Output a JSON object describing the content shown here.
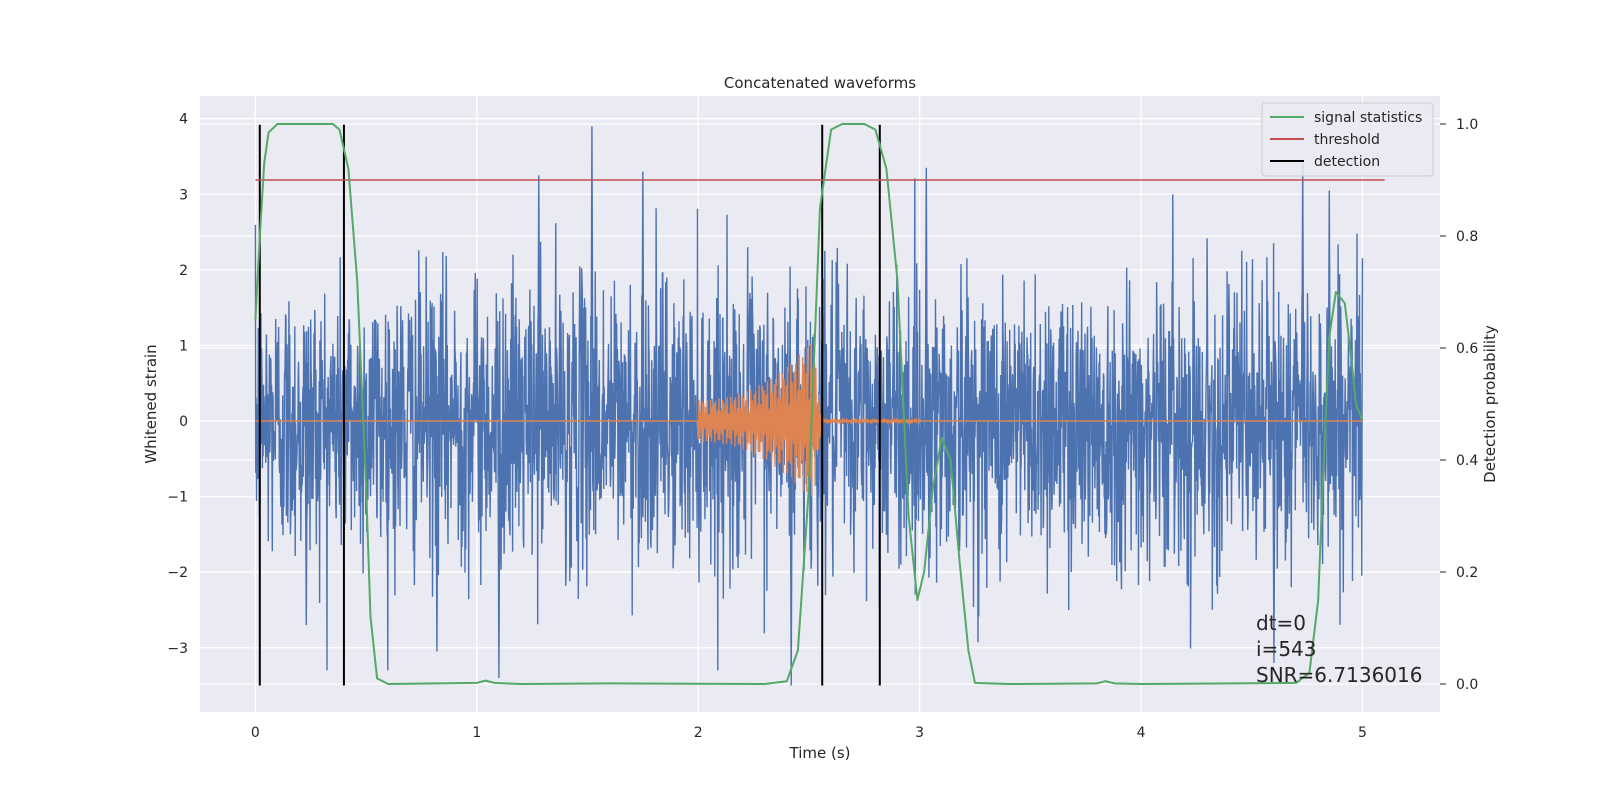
{
  "chart_data": {
    "type": "line",
    "title": "Concatenated waveforms",
    "xlabel": "Time (s)",
    "ylabel": "Whitened strain",
    "y2label": "Detection probability",
    "xlim": [
      -0.25,
      5.35
    ],
    "ylim": [
      -3.85,
      4.3
    ],
    "y2lim": [
      -0.05,
      1.05
    ],
    "xticks": [
      0,
      1,
      2,
      3,
      4,
      5
    ],
    "yticks": [
      -3,
      -2,
      -1,
      0,
      1,
      2,
      3,
      4
    ],
    "y2ticks": [
      0.0,
      0.2,
      0.4,
      0.6,
      0.8,
      1.0
    ],
    "grid": true,
    "legend_position": "top-right",
    "series": [
      {
        "name": "strain",
        "axis": "left",
        "color": "#4c72b0",
        "kind": "noise",
        "x_range": [
          0,
          5
        ],
        "typical_amplitude": 1.2,
        "peaks": [
          {
            "x": 1.52,
            "y": 3.9
          },
          {
            "x": 1.1,
            "y": -3.4
          },
          {
            "x": 2.42,
            "y": -3.5
          },
          {
            "x": 0.23,
            "y": -2.7
          },
          {
            "x": 0.82,
            "y": -3.05
          },
          {
            "x": 1.28,
            "y": 3.25
          },
          {
            "x": 1.75,
            "y": 3.3
          },
          {
            "x": 4.73,
            "y": 3.4
          },
          {
            "x": 4.85,
            "y": 3.05
          },
          {
            "x": 3.03,
            "y": 3.35
          },
          {
            "x": 4.6,
            "y": -3.2
          }
        ]
      },
      {
        "name": "injected signal",
        "axis": "left",
        "color": "#dd8452",
        "kind": "chirp",
        "x_start": 2.0,
        "x_peak": 2.52,
        "x_end": 3.0,
        "start_amplitude": 0.28,
        "peak_amplitude": 1.08
      },
      {
        "name": "signal statistics",
        "axis": "right",
        "color": "#55a868",
        "points": [
          [
            0.0,
            0.65
          ],
          [
            0.02,
            0.8
          ],
          [
            0.04,
            0.93
          ],
          [
            0.06,
            0.985
          ],
          [
            0.1,
            1.0
          ],
          [
            0.35,
            1.0
          ],
          [
            0.38,
            0.99
          ],
          [
            0.42,
            0.92
          ],
          [
            0.46,
            0.72
          ],
          [
            0.5,
            0.35
          ],
          [
            0.52,
            0.12
          ],
          [
            0.55,
            0.01
          ],
          [
            0.6,
            0.0
          ],
          [
            1.0,
            0.002
          ],
          [
            1.04,
            0.006
          ],
          [
            1.08,
            0.002
          ],
          [
            1.2,
            0.0
          ],
          [
            1.6,
            0.001
          ],
          [
            2.3,
            0.0
          ],
          [
            2.4,
            0.005
          ],
          [
            2.45,
            0.06
          ],
          [
            2.5,
            0.35
          ],
          [
            2.55,
            0.85
          ],
          [
            2.6,
            0.99
          ],
          [
            2.65,
            1.0
          ],
          [
            2.75,
            1.0
          ],
          [
            2.8,
            0.99
          ],
          [
            2.85,
            0.92
          ],
          [
            2.9,
            0.72
          ],
          [
            2.95,
            0.3
          ],
          [
            2.99,
            0.15
          ],
          [
            3.02,
            0.2
          ],
          [
            3.06,
            0.35
          ],
          [
            3.1,
            0.44
          ],
          [
            3.14,
            0.4
          ],
          [
            3.18,
            0.22
          ],
          [
            3.22,
            0.06
          ],
          [
            3.25,
            0.002
          ],
          [
            3.4,
            0.0
          ],
          [
            3.8,
            0.001
          ],
          [
            3.84,
            0.005
          ],
          [
            3.88,
            0.001
          ],
          [
            4.0,
            0.0
          ],
          [
            4.7,
            0.002
          ],
          [
            4.76,
            0.02
          ],
          [
            4.8,
            0.15
          ],
          [
            4.82,
            0.35
          ],
          [
            4.85,
            0.62
          ],
          [
            4.88,
            0.7
          ],
          [
            4.92,
            0.68
          ],
          [
            4.95,
            0.58
          ],
          [
            4.97,
            0.5
          ],
          [
            5.0,
            0.47
          ]
        ]
      },
      {
        "name": "threshold",
        "axis": "right",
        "color": "#c44e52",
        "points": [
          [
            0.0,
            0.9
          ],
          [
            5.1,
            0.9
          ]
        ]
      },
      {
        "name": "detection",
        "axis": "left",
        "color": "#000000",
        "kind": "vlines",
        "x": [
          0.02,
          0.4,
          2.56,
          2.82
        ],
        "y_range": [
          -3.5,
          3.92
        ]
      }
    ],
    "legend": [
      {
        "label": "signal statistics",
        "color": "#55a868"
      },
      {
        "label": "threshold",
        "color": "#c44e52"
      },
      {
        "label": "detection",
        "color": "#000000"
      }
    ],
    "annotations": [
      "dt=0",
      "i=543",
      "SNR=6.7136016"
    ]
  }
}
